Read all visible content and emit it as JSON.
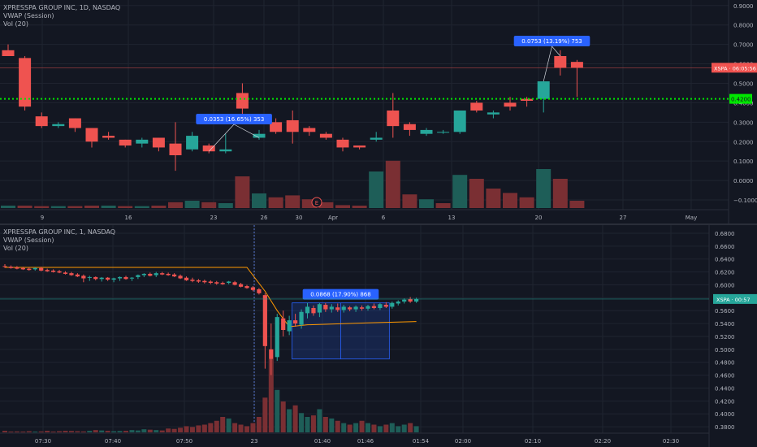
{
  "colors": {
    "background": "#131722",
    "grid": "#1f2430",
    "axis_text": "#b2b5be",
    "up": "#26a69a",
    "down": "#ef5350",
    "vol_up": "#1e5e58",
    "vol_down": "#7a2f33",
    "vwap": "#ff9800",
    "level": "#00e600",
    "price_tag": "#ef5350",
    "price_tag_bottom": "#26a69a",
    "measure_label": "#2962ff",
    "measure_box": "#2962ff"
  },
  "top_chart": {
    "legend": {
      "title": "XPRESSPA GROUP INC, 1D, NASDAQ",
      "vwap": "VWAP (Session)",
      "vol": "Vol (20)"
    },
    "price_labels": [
      "0.9000",
      "0.8000",
      "0.7000",
      "0.6000",
      "0.5000",
      "0.4000",
      "0.3000",
      "0.2000",
      "0.1000",
      "0.0000",
      "−0.1000"
    ],
    "x_labels": [
      "9",
      "16",
      "23",
      "26",
      "30",
      "Apr",
      "6",
      "13",
      "20",
      "27",
      "May"
    ],
    "price_tag": "XSPA · 06:05:56",
    "level_tag": "0.4200",
    "measure_1": "0.0353 (16.65%) 353",
    "measure_2": "0.0753 (13.19%) 753",
    "event_marker": "E"
  },
  "bottom_chart": {
    "legend": {
      "title": "XPRESSPA GROUP INC, 1, NASDAQ",
      "vwap": "VWAP (Session)",
      "vol": "Vol (20)"
    },
    "price_labels": [
      "0.6800",
      "0.6600",
      "0.6400",
      "0.6200",
      "0.6000",
      "0.5800",
      "0.5600",
      "0.5400",
      "0.5200",
      "0.5000",
      "0.4800",
      "0.4600",
      "0.4400",
      "0.4200",
      "0.4000",
      "0.3800"
    ],
    "x_labels": [
      "07:30",
      "07:40",
      "07:50",
      "23",
      "01:40",
      "01:46",
      "01:54",
      "02:00",
      "02:10",
      "02:20",
      "02:30"
    ],
    "price_tag": "XSPA · 00:57",
    "measure": "0.0868 (17.90%) 868"
  },
  "chart_data": [
    {
      "type": "candlestick",
      "title": "XPRESSPA GROUP INC, 1D, NASDAQ",
      "interval": "1D",
      "ylim": [
        -0.15,
        0.92
      ],
      "grid": true,
      "horizontal_level": 0.42,
      "candles": [
        {
          "o": 0.67,
          "h": 0.7,
          "l": 0.64,
          "c": 0.64
        },
        {
          "o": 0.63,
          "h": 0.64,
          "l": 0.36,
          "c": 0.38
        },
        {
          "o": 0.33,
          "h": 0.35,
          "l": 0.27,
          "c": 0.28
        },
        {
          "o": 0.28,
          "h": 0.3,
          "l": 0.27,
          "c": 0.29
        },
        {
          "o": 0.32,
          "h": 0.32,
          "l": 0.25,
          "c": 0.27
        },
        {
          "o": 0.27,
          "h": 0.27,
          "l": 0.17,
          "c": 0.2
        },
        {
          "o": 0.23,
          "h": 0.25,
          "l": 0.21,
          "c": 0.22
        },
        {
          "o": 0.21,
          "h": 0.21,
          "l": 0.17,
          "c": 0.18
        },
        {
          "o": 0.19,
          "h": 0.22,
          "l": 0.17,
          "c": 0.21
        },
        {
          "o": 0.22,
          "h": 0.22,
          "l": 0.15,
          "c": 0.17
        },
        {
          "o": 0.19,
          "h": 0.3,
          "l": 0.05,
          "c": 0.13
        },
        {
          "o": 0.16,
          "h": 0.25,
          "l": 0.15,
          "c": 0.23
        },
        {
          "o": 0.18,
          "h": 0.19,
          "l": 0.14,
          "c": 0.15
        },
        {
          "o": 0.15,
          "h": 0.24,
          "l": 0.14,
          "c": 0.16
        },
        {
          "o": 0.45,
          "h": 0.5,
          "l": 0.34,
          "c": 0.37
        },
        {
          "o": 0.22,
          "h": 0.26,
          "l": 0.21,
          "c": 0.24
        },
        {
          "o": 0.3,
          "h": 0.32,
          "l": 0.24,
          "c": 0.25
        },
        {
          "o": 0.31,
          "h": 0.36,
          "l": 0.19,
          "c": 0.25
        },
        {
          "o": 0.27,
          "h": 0.28,
          "l": 0.23,
          "c": 0.25
        },
        {
          "o": 0.24,
          "h": 0.25,
          "l": 0.21,
          "c": 0.22
        },
        {
          "o": 0.21,
          "h": 0.22,
          "l": 0.15,
          "c": 0.17
        },
        {
          "o": 0.18,
          "h": 0.18,
          "l": 0.16,
          "c": 0.17
        },
        {
          "o": 0.21,
          "h": 0.25,
          "l": 0.2,
          "c": 0.22
        },
        {
          "o": 0.36,
          "h": 0.45,
          "l": 0.22,
          "c": 0.28
        },
        {
          "o": 0.29,
          "h": 0.3,
          "l": 0.23,
          "c": 0.26
        },
        {
          "o": 0.24,
          "h": 0.27,
          "l": 0.23,
          "c": 0.26
        },
        {
          "o": 0.25,
          "h": 0.26,
          "l": 0.24,
          "c": 0.25
        },
        {
          "o": 0.25,
          "h": 0.36,
          "l": 0.24,
          "c": 0.36
        },
        {
          "o": 0.4,
          "h": 0.41,
          "l": 0.35,
          "c": 0.36
        },
        {
          "o": 0.34,
          "h": 0.36,
          "l": 0.32,
          "c": 0.35
        },
        {
          "o": 0.4,
          "h": 0.43,
          "l": 0.36,
          "c": 0.38
        },
        {
          "o": 0.42,
          "h": 0.43,
          "l": 0.38,
          "c": 0.41
        },
        {
          "o": 0.42,
          "h": 0.51,
          "l": 0.35,
          "c": 0.51
        },
        {
          "o": 0.64,
          "h": 0.67,
          "l": 0.54,
          "c": 0.58
        },
        {
          "o": 0.61,
          "h": 0.62,
          "l": 0.43,
          "c": 0.58
        }
      ],
      "volume": [
        {
          "v": 0.005,
          "up": true
        },
        {
          "v": 0.005,
          "up": false
        },
        {
          "v": 0.004,
          "up": false
        },
        {
          "v": 0.004,
          "up": true
        },
        {
          "v": 0.004,
          "up": false
        },
        {
          "v": 0.005,
          "up": false
        },
        {
          "v": 0.005,
          "up": true
        },
        {
          "v": 0.004,
          "up": false
        },
        {
          "v": 0.004,
          "up": true
        },
        {
          "v": 0.005,
          "up": false
        },
        {
          "v": 0.012,
          "up": false
        },
        {
          "v": 0.015,
          "up": true
        },
        {
          "v": 0.012,
          "up": false
        },
        {
          "v": 0.01,
          "up": true
        },
        {
          "v": 0.065,
          "up": false
        },
        {
          "v": 0.03,
          "up": true
        },
        {
          "v": 0.022,
          "up": false
        },
        {
          "v": 0.026,
          "up": false
        },
        {
          "v": 0.018,
          "up": false
        },
        {
          "v": 0.012,
          "up": false
        },
        {
          "v": 0.006,
          "up": false
        },
        {
          "v": 0.005,
          "up": false
        },
        {
          "v": 0.075,
          "up": true
        },
        {
          "v": 0.097,
          "up": false
        },
        {
          "v": 0.028,
          "up": false
        },
        {
          "v": 0.018,
          "up": true
        },
        {
          "v": 0.01,
          "up": false
        },
        {
          "v": 0.068,
          "up": true
        },
        {
          "v": 0.06,
          "up": false
        },
        {
          "v": 0.04,
          "up": false
        },
        {
          "v": 0.031,
          "up": false
        },
        {
          "v": 0.022,
          "up": false
        },
        {
          "v": 0.08,
          "up": true
        },
        {
          "v": 0.06,
          "up": false
        },
        {
          "v": 0.015,
          "up": false
        }
      ],
      "measurements": [
        {
          "label": "0.0353 (16.65%) 353",
          "from_index": 12,
          "to_index": 15
        },
        {
          "label": "0.0753 (13.19%) 753",
          "from_index": 32,
          "to_index": 33
        }
      ]
    },
    {
      "type": "candlestick",
      "title": "XPRESSPA GROUP INC, 1, NASDAQ",
      "interval": "1",
      "ylim": [
        0.37,
        0.69
      ],
      "grid": true,
      "candles": [
        {
          "o": 0.629,
          "h": 0.632,
          "l": 0.626,
          "c": 0.628
        },
        {
          "o": 0.628,
          "h": 0.63,
          "l": 0.625,
          "c": 0.626
        },
        {
          "o": 0.627,
          "h": 0.629,
          "l": 0.624,
          "c": 0.625
        },
        {
          "o": 0.626,
          "h": 0.628,
          "l": 0.623,
          "c": 0.624
        },
        {
          "o": 0.625,
          "h": 0.627,
          "l": 0.622,
          "c": 0.623
        },
        {
          "o": 0.624,
          "h": 0.627,
          "l": 0.622,
          "c": 0.626
        },
        {
          "o": 0.626,
          "h": 0.628,
          "l": 0.621,
          "c": 0.622
        },
        {
          "o": 0.623,
          "h": 0.625,
          "l": 0.62,
          "c": 0.621
        },
        {
          "o": 0.622,
          "h": 0.624,
          "l": 0.619,
          "c": 0.62
        },
        {
          "o": 0.621,
          "h": 0.623,
          "l": 0.618,
          "c": 0.619
        },
        {
          "o": 0.619,
          "h": 0.621,
          "l": 0.616,
          "c": 0.617
        },
        {
          "o": 0.618,
          "h": 0.62,
          "l": 0.614,
          "c": 0.615
        },
        {
          "o": 0.616,
          "h": 0.618,
          "l": 0.612,
          "c": 0.613
        },
        {
          "o": 0.614,
          "h": 0.616,
          "l": 0.604,
          "c": 0.61
        },
        {
          "o": 0.611,
          "h": 0.614,
          "l": 0.606,
          "c": 0.612
        },
        {
          "o": 0.612,
          "h": 0.613,
          "l": 0.607,
          "c": 0.609
        },
        {
          "o": 0.609,
          "h": 0.612,
          "l": 0.605,
          "c": 0.611
        },
        {
          "o": 0.611,
          "h": 0.612,
          "l": 0.606,
          "c": 0.608
        },
        {
          "o": 0.608,
          "h": 0.611,
          "l": 0.604,
          "c": 0.61
        },
        {
          "o": 0.61,
          "h": 0.613,
          "l": 0.606,
          "c": 0.612
        },
        {
          "o": 0.612,
          "h": 0.614,
          "l": 0.608,
          "c": 0.609
        },
        {
          "o": 0.61,
          "h": 0.612,
          "l": 0.606,
          "c": 0.611
        },
        {
          "o": 0.612,
          "h": 0.616,
          "l": 0.609,
          "c": 0.615
        },
        {
          "o": 0.615,
          "h": 0.618,
          "l": 0.612,
          "c": 0.617
        },
        {
          "o": 0.617,
          "h": 0.619,
          "l": 0.613,
          "c": 0.614
        },
        {
          "o": 0.615,
          "h": 0.62,
          "l": 0.612,
          "c": 0.618
        },
        {
          "o": 0.618,
          "h": 0.62,
          "l": 0.615,
          "c": 0.616
        },
        {
          "o": 0.617,
          "h": 0.619,
          "l": 0.614,
          "c": 0.615
        },
        {
          "o": 0.616,
          "h": 0.618,
          "l": 0.612,
          "c": 0.613
        },
        {
          "o": 0.614,
          "h": 0.616,
          "l": 0.609,
          "c": 0.61
        },
        {
          "o": 0.611,
          "h": 0.613,
          "l": 0.606,
          "c": 0.607
        },
        {
          "o": 0.608,
          "h": 0.611,
          "l": 0.604,
          "c": 0.606
        },
        {
          "o": 0.607,
          "h": 0.609,
          "l": 0.603,
          "c": 0.605
        },
        {
          "o": 0.606,
          "h": 0.608,
          "l": 0.602,
          "c": 0.604
        },
        {
          "o": 0.605,
          "h": 0.607,
          "l": 0.601,
          "c": 0.603
        },
        {
          "o": 0.604,
          "h": 0.606,
          "l": 0.6,
          "c": 0.602
        },
        {
          "o": 0.603,
          "h": 0.605,
          "l": 0.6,
          "c": 0.601
        },
        {
          "o": 0.603,
          "h": 0.606,
          "l": 0.601,
          "c": 0.605
        },
        {
          "o": 0.604,
          "h": 0.606,
          "l": 0.599,
          "c": 0.6
        },
        {
          "o": 0.601,
          "h": 0.603,
          "l": 0.596,
          "c": 0.597
        },
        {
          "o": 0.598,
          "h": 0.6,
          "l": 0.594,
          "c": 0.595
        },
        {
          "o": 0.596,
          "h": 0.598,
          "l": 0.59,
          "c": 0.592
        },
        {
          "o": 0.593,
          "h": 0.595,
          "l": 0.585,
          "c": 0.587
        },
        {
          "o": 0.584,
          "h": 0.587,
          "l": 0.47,
          "c": 0.505
        },
        {
          "o": 0.5,
          "h": 0.54,
          "l": 0.46,
          "c": 0.485
        },
        {
          "o": 0.488,
          "h": 0.555,
          "l": 0.482,
          "c": 0.55
        },
        {
          "o": 0.548,
          "h": 0.56,
          "l": 0.52,
          "c": 0.53
        },
        {
          "o": 0.528,
          "h": 0.552,
          "l": 0.522,
          "c": 0.545
        },
        {
          "o": 0.545,
          "h": 0.555,
          "l": 0.535,
          "c": 0.54
        },
        {
          "o": 0.538,
          "h": 0.562,
          "l": 0.532,
          "c": 0.558
        },
        {
          "o": 0.556,
          "h": 0.572,
          "l": 0.548,
          "c": 0.566
        },
        {
          "o": 0.564,
          "h": 0.568,
          "l": 0.552,
          "c": 0.556
        },
        {
          "o": 0.557,
          "h": 0.572,
          "l": 0.55,
          "c": 0.57
        },
        {
          "o": 0.569,
          "h": 0.572,
          "l": 0.558,
          "c": 0.562
        },
        {
          "o": 0.562,
          "h": 0.57,
          "l": 0.557,
          "c": 0.566
        },
        {
          "o": 0.565,
          "h": 0.571,
          "l": 0.558,
          "c": 0.561
        },
        {
          "o": 0.561,
          "h": 0.569,
          "l": 0.557,
          "c": 0.566
        },
        {
          "o": 0.565,
          "h": 0.567,
          "l": 0.559,
          "c": 0.562
        },
        {
          "o": 0.562,
          "h": 0.568,
          "l": 0.558,
          "c": 0.566
        },
        {
          "o": 0.565,
          "h": 0.568,
          "l": 0.56,
          "c": 0.563
        },
        {
          "o": 0.563,
          "h": 0.569,
          "l": 0.56,
          "c": 0.567
        },
        {
          "o": 0.567,
          "h": 0.571,
          "l": 0.562,
          "c": 0.564
        },
        {
          "o": 0.564,
          "h": 0.572,
          "l": 0.561,
          "c": 0.57
        },
        {
          "o": 0.569,
          "h": 0.573,
          "l": 0.564,
          "c": 0.566
        },
        {
          "o": 0.566,
          "h": 0.574,
          "l": 0.563,
          "c": 0.572
        },
        {
          "o": 0.571,
          "h": 0.576,
          "l": 0.568,
          "c": 0.574
        },
        {
          "o": 0.574,
          "h": 0.579,
          "l": 0.571,
          "c": 0.577
        },
        {
          "o": 0.578,
          "h": 0.581,
          "l": 0.572,
          "c": 0.574
        },
        {
          "o": 0.574,
          "h": 0.58,
          "l": 0.572,
          "c": 0.578
        }
      ],
      "volume": [
        0.02,
        0.01,
        0.012,
        0.01,
        0.015,
        0.01,
        0.012,
        0.02,
        0.01,
        0.015,
        0.02,
        0.018,
        0.015,
        0.012,
        0.02,
        0.03,
        0.025,
        0.02,
        0.015,
        0.018,
        0.02,
        0.03,
        0.025,
        0.04,
        0.035,
        0.03,
        0.025,
        0.05,
        0.045,
        0.06,
        0.08,
        0.07,
        0.09,
        0.1,
        0.12,
        0.15,
        0.2,
        0.18,
        0.12,
        0.1,
        0.08,
        0.12,
        0.2,
        0.45,
        0.95,
        0.55,
        0.4,
        0.3,
        0.35,
        0.25,
        0.2,
        0.22,
        0.3,
        0.2,
        0.18,
        0.15,
        0.12,
        0.1,
        0.12,
        0.15,
        0.12,
        0.1,
        0.08,
        0.1,
        0.12,
        0.08,
        0.1,
        0.12,
        0.08
      ],
      "vwap": [
        [
          0,
          0.627
        ],
        [
          40,
          0.627
        ],
        [
          43,
          0.59
        ],
        [
          45,
          0.56
        ],
        [
          47,
          0.535
        ],
        [
          50,
          0.538
        ],
        [
          60,
          0.541
        ],
        [
          68,
          0.543
        ]
      ],
      "measurement": {
        "label": "0.0868 (17.90%) 868",
        "from_index": 48,
        "to_index": 63,
        "low": 0.485,
        "high": 0.572
      }
    }
  ]
}
